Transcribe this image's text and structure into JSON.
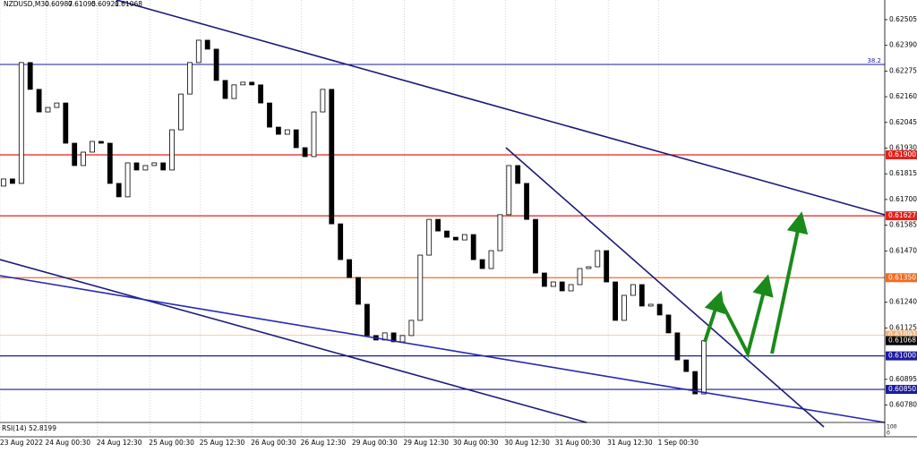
{
  "chart_data": {
    "type": "candlestick",
    "title": "NZDUSD,M30",
    "header_ohlc": [
      0.60987,
      0.61095,
      0.60921,
      0.61068
    ],
    "ylim": [
      0.60702,
      0.62593
    ],
    "yticks": [
      0.62505,
      {
        "value": 0.6239,
        "label": "0.62390"
      },
      0.62275,
      {
        "value": 0.6216,
        "label": "0.62160"
      },
      0.62045,
      {
        "value": 0.6193,
        "label": "0.61930"
      },
      0.61815,
      {
        "value": 0.617,
        "label": "0.61700"
      },
      0.61585,
      {
        "value": 0.6147,
        "label": "0.61470"
      },
      {
        "value": 0.6124,
        "label": "0.61240"
      },
      0.61125,
      0.60895,
      {
        "value": 0.6078,
        "label": "0.60780"
      }
    ],
    "xticks": [
      {
        "value": 0,
        "label": "23 Aug 2022"
      },
      {
        "value": 5.2,
        "label": "24 Aug 00:30"
      },
      {
        "value": 11,
        "label": "24 Aug 12:30"
      },
      {
        "value": 16.9,
        "label": "25 Aug 00:30"
      },
      {
        "value": 22.6,
        "label": "25 Aug 12:30"
      },
      {
        "value": 28.4,
        "label": "26 Aug 00:30"
      },
      {
        "value": 34,
        "label": "26 Aug 12:30"
      },
      {
        "value": 39.8,
        "label": "29 Aug 00:30"
      },
      {
        "value": 45.6,
        "label": "29 Aug 12:30"
      },
      {
        "value": 51.2,
        "label": "30 Aug 00:30"
      },
      {
        "value": 57,
        "label": "30 Aug 12:30"
      },
      {
        "value": 62.7,
        "label": "31 Aug 00:30"
      },
      {
        "value": 68.6,
        "label": "31 Aug 12:30"
      },
      {
        "value": 74.3,
        "label": "1 Sep 00:30"
      }
    ],
    "open": [
      0.6176,
      0.61792,
      0.61772,
      0.62313,
      0.62193,
      0.62092,
      0.62112,
      0.62132,
      0.61952,
      0.61852,
      0.61912,
      0.6196,
      0.61952,
      0.61772,
      0.61712,
      0.61864,
      0.61832,
      0.61852,
      0.61864,
      0.61832,
      0.62012,
      0.62172,
      0.62313,
      0.62413,
      0.62373,
      0.62233,
      0.62152,
      0.62213,
      0.62225,
      0.62213,
      0.62132,
      0.62024,
      0.61992,
      0.62012,
      0.61932,
      0.61892,
      0.62092,
      0.62193,
      0.61591,
      0.61431,
      0.61351,
      0.61231,
      0.61091,
      0.61071,
      0.61103,
      0.61063,
      0.61091,
      0.61159,
      0.61451,
      0.61611,
      0.61559,
      0.61531,
      0.61519,
      0.61543,
      0.61431,
      0.61391,
      0.61471,
      0.61632,
      0.61852,
      0.61772,
      0.61611,
      0.61371,
      0.61311,
      0.61331,
      0.61291,
      0.61319,
      0.61391,
      0.61399,
      0.61471,
      0.61331,
      0.61159,
      0.61271,
      0.61319,
      0.61223,
      0.61231,
      0.61183,
      0.61103,
      0.60982,
      0.6093,
      0.6083
    ],
    "close": [
      0.61792,
      0.61772,
      0.62313,
      0.62193,
      0.62092,
      0.62112,
      0.62132,
      0.61952,
      0.61852,
      0.61912,
      0.6196,
      0.61952,
      0.61772,
      0.61712,
      0.61864,
      0.61832,
      0.61852,
      0.61864,
      0.61832,
      0.62012,
      0.62172,
      0.62313,
      0.62413,
      0.62373,
      0.62233,
      0.62152,
      0.62213,
      0.62225,
      0.62213,
      0.62132,
      0.62024,
      0.61992,
      0.62012,
      0.61932,
      0.61892,
      0.62092,
      0.62193,
      0.61591,
      0.61431,
      0.61351,
      0.61231,
      0.61091,
      0.61071,
      0.61103,
      0.61063,
      0.61091,
      0.61159,
      0.61451,
      0.61611,
      0.61559,
      0.61531,
      0.61519,
      0.61543,
      0.61431,
      0.61391,
      0.61471,
      0.61632,
      0.61852,
      0.61772,
      0.61611,
      0.61371,
      0.61311,
      0.61331,
      0.61291,
      0.61319,
      0.61391,
      0.61399,
      0.61471,
      0.61331,
      0.61159,
      0.61271,
      0.61319,
      0.61223,
      0.61231,
      0.61183,
      0.61103,
      0.60982,
      0.6093,
      0.6083,
      0.61068
    ],
    "levels": [
      {
        "value": 0.619,
        "label": "0.61900",
        "color": "#e3201b",
        "text": "#ffffff"
      },
      {
        "value": 0.61627,
        "label": "0.61627",
        "color": "#e3201b",
        "text": "#ffffff"
      },
      {
        "value": 0.6135,
        "label": "0.61350",
        "color": "#f26b21",
        "text": "#ffffff"
      },
      {
        "value": 0.61093,
        "label": "0.61093",
        "color": "#f5b27a",
        "text": "#ffffff"
      },
      {
        "value": 0.61068,
        "label": "0.61068",
        "color": "#000000",
        "text": "#ffffff"
      },
      {
        "value": 0.61,
        "label": "0.61000",
        "color": "#1a1aa0",
        "text": "#ffffff"
      },
      {
        "value": 0.6085,
        "label": "0.60850",
        "color": "#1a1aa0",
        "text": "#ffffff"
      }
    ],
    "fib_label": "38.2",
    "indicator": "RSI(14) 52.8199",
    "indicator_axis": [
      "100",
      "0"
    ]
  }
}
